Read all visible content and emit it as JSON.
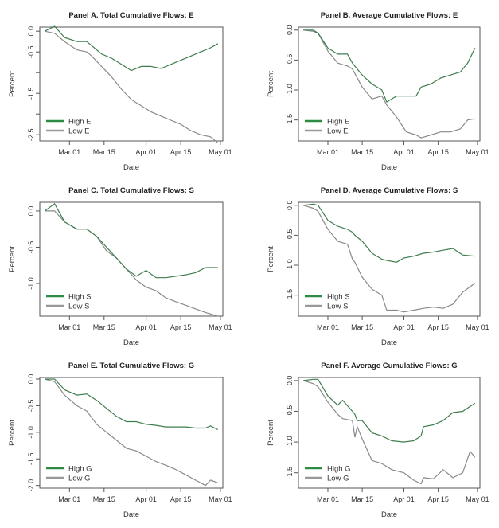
{
  "colors": {
    "high": "#3f7d4f",
    "low": "#8a8a8a",
    "frame": "#555555",
    "legend_high": "#2e8b45",
    "legend_low": "#999999"
  },
  "chart_data": [
    {
      "type": "line",
      "title": "Panel A. Total Cumulative Flows: E",
      "xlabel": "Date",
      "ylabel": "Percent",
      "xlim": [
        "Feb 18",
        "May 02"
      ],
      "ylim": [
        -2.65,
        0.1
      ],
      "yticks": [
        0.0,
        -0.5,
        -1.0,
        -1.5,
        -2.0,
        -2.5
      ],
      "ytick_labels": [
        "0.0",
        "-0.5",
        "",
        "-1.5",
        "",
        "-2.5"
      ],
      "xticks": [
        "Mar 01",
        "Mar 15",
        "Apr 01",
        "Apr 15",
        "May 01"
      ],
      "legend": {
        "position": "bottom-left",
        "entries": [
          "High E",
          "Low E"
        ]
      },
      "x": [
        "Feb 20",
        "Feb 24",
        "Feb 28",
        "Mar 04",
        "Mar 08",
        "Mar 10",
        "Mar 14",
        "Mar 18",
        "Mar 22",
        "Mar 26",
        "Mar 30",
        "Apr 03",
        "Apr 07",
        "Apr 11",
        "Apr 15",
        "Apr 19",
        "Apr 23",
        "Apr 27",
        "Apr 30"
      ],
      "series": [
        {
          "name": "High E",
          "values": [
            0.0,
            0.12,
            -0.15,
            -0.25,
            -0.25,
            -0.35,
            -0.55,
            -0.65,
            -0.8,
            -0.95,
            -0.85,
            -0.85,
            -0.9,
            -0.8,
            -0.7,
            -0.6,
            -0.5,
            -0.4,
            -0.3
          ]
        },
        {
          "name": "Low E",
          "values": [
            0.0,
            -0.05,
            -0.25,
            -0.45,
            -0.5,
            -0.6,
            -0.85,
            -1.1,
            -1.4,
            -1.65,
            -1.8,
            -1.95,
            -2.05,
            -2.15,
            -2.25,
            -2.4,
            -2.5,
            -2.55,
            -2.7
          ]
        }
      ]
    },
    {
      "type": "line",
      "title": "Panel B. Average Cumulative Flows: E",
      "xlabel": "Date",
      "ylabel": "Percent",
      "xlim": [
        "Feb 18",
        "May 02"
      ],
      "ylim": [
        -1.85,
        0.05
      ],
      "yticks": [
        0.0,
        -0.5,
        -1.0,
        -1.5
      ],
      "ytick_labels": [
        "0.0",
        "-0.5",
        "-1.0",
        "-1.5"
      ],
      "xticks": [
        "Mar 01",
        "Mar 15",
        "Apr 01",
        "Apr 15",
        "May 01"
      ],
      "legend": {
        "position": "bottom-left",
        "entries": [
          "High E",
          "Low E"
        ]
      },
      "x": [
        "Feb 20",
        "Feb 24",
        "Feb 26",
        "Mar 01",
        "Mar 05",
        "Mar 09",
        "Mar 11",
        "Mar 15",
        "Mar 19",
        "Mar 23",
        "Mar 25",
        "Mar 29",
        "Apr 02",
        "Apr 06",
        "Apr 08",
        "Apr 12",
        "Apr 16",
        "Apr 20",
        "Apr 24",
        "Apr 27",
        "Apr 30"
      ],
      "series": [
        {
          "name": "High E",
          "values": [
            0.0,
            0.0,
            -0.05,
            -0.3,
            -0.4,
            -0.4,
            -0.55,
            -0.75,
            -0.9,
            -1.0,
            -1.2,
            -1.1,
            -1.1,
            -1.1,
            -0.95,
            -0.9,
            -0.8,
            -0.75,
            -0.7,
            -0.55,
            -0.3
          ]
        },
        {
          "name": "Low E",
          "values": [
            0.0,
            -0.02,
            -0.05,
            -0.35,
            -0.55,
            -0.6,
            -0.65,
            -0.95,
            -1.15,
            -1.1,
            -1.25,
            -1.45,
            -1.7,
            -1.75,
            -1.8,
            -1.75,
            -1.7,
            -1.7,
            -1.65,
            -1.5,
            -1.48
          ]
        }
      ]
    },
    {
      "type": "line",
      "title": "Panel C. Total Cumulative Flows: S",
      "xlabel": "Date",
      "ylabel": "Percent",
      "xlim": [
        "Feb 18",
        "May 02"
      ],
      "ylim": [
        -1.45,
        0.12
      ],
      "yticks": [
        0.0,
        -0.5,
        -1.0
      ],
      "ytick_labels": [
        "0.0",
        "-0.5",
        "-1.0"
      ],
      "xticks": [
        "Mar 01",
        "Mar 15",
        "Apr 01",
        "Apr 15",
        "May 01"
      ],
      "legend": {
        "position": "bottom-left",
        "entries": [
          "High S",
          "Low S"
        ]
      },
      "x": [
        "Feb 20",
        "Feb 24",
        "Feb 28",
        "Mar 04",
        "Mar 08",
        "Mar 12",
        "Mar 16",
        "Mar 20",
        "Mar 24",
        "Mar 28",
        "Apr 01",
        "Apr 05",
        "Apr 09",
        "Apr 13",
        "Apr 17",
        "Apr 21",
        "Apr 25",
        "Apr 30"
      ],
      "series": [
        {
          "name": "High S",
          "values": [
            0.0,
            0.1,
            -0.15,
            -0.25,
            -0.25,
            -0.35,
            -0.5,
            -0.65,
            -0.8,
            -0.9,
            -0.82,
            -0.92,
            -0.92,
            -0.9,
            -0.88,
            -0.85,
            -0.78,
            -0.78
          ]
        },
        {
          "name": "Low S",
          "values": [
            0.0,
            0.0,
            -0.15,
            -0.25,
            -0.25,
            -0.35,
            -0.55,
            -0.65,
            -0.8,
            -0.95,
            -1.05,
            -1.1,
            -1.2,
            -1.25,
            -1.3,
            -1.35,
            -1.4,
            -1.45
          ]
        }
      ]
    },
    {
      "type": "line",
      "title": "Panel D. Average Cumulative Flows: S",
      "xlabel": "Date",
      "ylabel": "Percent",
      "xlim": [
        "Feb 18",
        "May 02"
      ],
      "ylim": [
        -1.85,
        0.05
      ],
      "yticks": [
        0.0,
        -0.5,
        -1.0,
        -1.5
      ],
      "ytick_labels": [
        "0.0",
        "-0.5",
        "-1.0",
        "-1.5"
      ],
      "xticks": [
        "Mar 01",
        "Mar 15",
        "Apr 01",
        "Apr 15",
        "May 01"
      ],
      "legend": {
        "position": "bottom-left",
        "entries": [
          "High S",
          "Low S"
        ]
      },
      "x": [
        "Feb 20",
        "Feb 24",
        "Feb 26",
        "Mar 01",
        "Mar 05",
        "Mar 09",
        "Mar 11",
        "Mar 12",
        "Mar 15",
        "Mar 19",
        "Mar 23",
        "Mar 25",
        "Mar 29",
        "Apr 01",
        "Apr 05",
        "Apr 09",
        "Apr 13",
        "Apr 17",
        "Apr 21",
        "Apr 25",
        "Apr 30"
      ],
      "series": [
        {
          "name": "High S",
          "values": [
            0.0,
            0.02,
            0.0,
            -0.25,
            -0.35,
            -0.4,
            -0.45,
            -0.5,
            -0.6,
            -0.8,
            -0.9,
            -0.92,
            -0.95,
            -0.88,
            -0.85,
            -0.8,
            -0.78,
            -0.75,
            -0.72,
            -0.83,
            -0.85
          ]
        },
        {
          "name": "Low S",
          "values": [
            0.0,
            -0.05,
            -0.1,
            -0.4,
            -0.6,
            -0.65,
            -0.9,
            -0.95,
            -1.2,
            -1.4,
            -1.5,
            -1.75,
            -1.75,
            -1.78,
            -1.75,
            -1.72,
            -1.7,
            -1.72,
            -1.65,
            -1.45,
            -1.3
          ]
        }
      ]
    },
    {
      "type": "line",
      "title": "Panel E. Total Cumulative Flows: G",
      "xlabel": "Date",
      "ylabel": "Percent",
      "xlim": [
        "Feb 18",
        "May 02"
      ],
      "ylim": [
        -2.05,
        0.03
      ],
      "yticks": [
        0.0,
        -0.5,
        -1.0,
        -1.5,
        -2.0
      ],
      "ytick_labels": [
        "0.0",
        "-0.5",
        "-1.0",
        "-1.5",
        "-2.0"
      ],
      "xticks": [
        "Mar 01",
        "Mar 15",
        "Apr 01",
        "Apr 15",
        "May 01"
      ],
      "legend": {
        "position": "bottom-left",
        "entries": [
          "High G",
          "Low G"
        ]
      },
      "x": [
        "Feb 20",
        "Feb 24",
        "Feb 28",
        "Mar 04",
        "Mar 08",
        "Mar 12",
        "Mar 16",
        "Mar 20",
        "Mar 24",
        "Mar 28",
        "Apr 01",
        "Apr 05",
        "Apr 09",
        "Apr 13",
        "Apr 17",
        "Apr 21",
        "Apr 25",
        "Apr 27",
        "Apr 30"
      ],
      "series": [
        {
          "name": "High G",
          "values": [
            0.0,
            0.0,
            -0.2,
            -0.3,
            -0.28,
            -0.4,
            -0.55,
            -0.7,
            -0.8,
            -0.8,
            -0.85,
            -0.87,
            -0.9,
            -0.9,
            -0.9,
            -0.92,
            -0.92,
            -0.88,
            -0.95
          ]
        },
        {
          "name": "Low G",
          "values": [
            0.0,
            -0.05,
            -0.3,
            -0.5,
            -0.6,
            -0.85,
            -1.0,
            -1.15,
            -1.3,
            -1.35,
            -1.45,
            -1.55,
            -1.62,
            -1.7,
            -1.8,
            -1.9,
            -2.0,
            -1.9,
            -1.95
          ]
        }
      ]
    },
    {
      "type": "line",
      "title": "Panel F. Average Cumulative Flows: G",
      "xlabel": "Date",
      "ylabel": "Percent",
      "xlim": [
        "Feb 18",
        "May 02"
      ],
      "ylim": [
        -1.75,
        0.05
      ],
      "yticks": [
        0.0,
        -0.5,
        -1.0,
        -1.5
      ],
      "ytick_labels": [
        "0.0",
        "-0.5",
        "-1.0",
        "-1.5"
      ],
      "xticks": [
        "Mar 01",
        "Mar 15",
        "Apr 01",
        "Apr 15",
        "May 01"
      ],
      "legend": {
        "position": "bottom-left",
        "entries": [
          "High G",
          "Low G"
        ]
      },
      "x": [
        "Feb 20",
        "Feb 24",
        "Feb 26",
        "Mar 01",
        "Mar 05",
        "Mar 07",
        "Mar 11",
        "Mar 12",
        "Mar 13",
        "Mar 15",
        "Mar 19",
        "Mar 23",
        "Mar 27",
        "Apr 01",
        "Apr 05",
        "Apr 08",
        "Apr 09",
        "Apr 13",
        "Apr 17",
        "Apr 21",
        "Apr 25",
        "Apr 28",
        "Apr 30"
      ],
      "series": [
        {
          "name": "High G",
          "values": [
            0.0,
            0.02,
            0.02,
            -0.25,
            -0.4,
            -0.32,
            -0.5,
            -0.55,
            -0.65,
            -0.65,
            -0.85,
            -0.9,
            -0.98,
            -1.0,
            -0.98,
            -0.9,
            -0.75,
            -0.72,
            -0.65,
            -0.52,
            -0.5,
            -0.42,
            -0.37
          ]
        },
        {
          "name": "Low G",
          "values": [
            0.0,
            -0.05,
            -0.1,
            -0.35,
            -0.55,
            -0.62,
            -0.65,
            -0.92,
            -0.75,
            -0.95,
            -1.3,
            -1.35,
            -1.45,
            -1.5,
            -1.62,
            -1.68,
            -1.58,
            -1.6,
            -1.45,
            -1.58,
            -1.5,
            -1.15,
            -1.25
          ]
        }
      ]
    }
  ]
}
